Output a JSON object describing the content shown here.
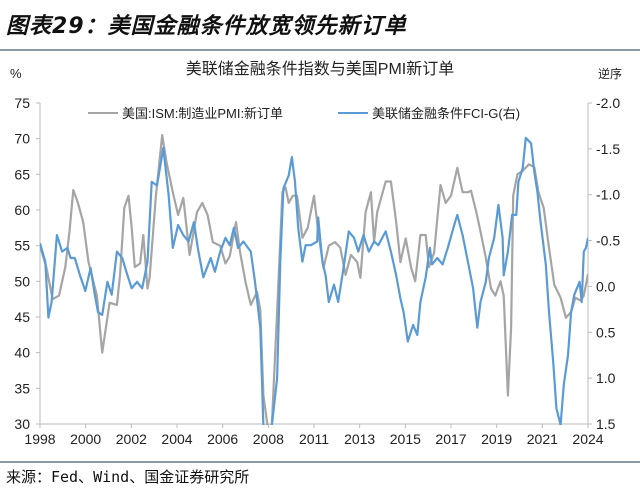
{
  "figure_title": "图表29：美国金融条件放宽领先新订单",
  "source": "来源：Fed、Wind、国金证券研究所",
  "chart_data": {
    "type": "line",
    "title": "美联储金融条件指数与美国PMI新订单",
    "ylabel_left": "%",
    "ylabel_right": "逆序",
    "x_ticks": [
      "1998",
      "2000",
      "2002",
      "2004",
      "2006",
      "2008",
      "2011",
      "2013",
      "2015",
      "2017",
      "2019",
      "2021",
      "2024"
    ],
    "xlim": [
      1998,
      2024
    ],
    "ylim_left": [
      30,
      75
    ],
    "y_ticks_left": [
      "75",
      "70",
      "65",
      "60",
      "55",
      "50",
      "45",
      "40",
      "35",
      "30"
    ],
    "ylim_right": [
      -2.0,
      1.5
    ],
    "right_axis_inverted": true,
    "y_ticks_right": [
      "-2.0",
      "-1.5",
      "-1.0",
      "-0.5",
      "0.0",
      "0.5",
      "1.0",
      "1.5"
    ],
    "grid": false,
    "legend_position": "top",
    "series": [
      {
        "name": "美国:ISM:制造业PMI:新订单",
        "axis": "left",
        "color": "#a5a5a5",
        "points": [
          [
            1998.0,
            55
          ],
          [
            1998.3,
            52
          ],
          [
            1998.6,
            47.5
          ],
          [
            1998.9,
            48
          ],
          [
            1999.2,
            52
          ],
          [
            1999.4,
            57
          ],
          [
            1999.58,
            62.8
          ],
          [
            1999.8,
            61
          ],
          [
            2000.05,
            58.3
          ],
          [
            2000.3,
            52.7
          ],
          [
            2000.7,
            48
          ],
          [
            2000.95,
            40
          ],
          [
            2001.3,
            47
          ],
          [
            2001.65,
            46.7
          ],
          [
            2001.8,
            51
          ],
          [
            2002.0,
            60.3
          ],
          [
            2002.2,
            62
          ],
          [
            2002.35,
            57.5
          ],
          [
            2002.5,
            52
          ],
          [
            2002.75,
            52.5
          ],
          [
            2002.9,
            56.5
          ],
          [
            2003.1,
            49
          ],
          [
            2003.2,
            50.5
          ],
          [
            2003.5,
            62
          ],
          [
            2003.8,
            70.5
          ],
          [
            2004.0,
            66.7
          ],
          [
            2004.3,
            62.5
          ],
          [
            2004.55,
            59.3
          ],
          [
            2004.8,
            61.7
          ],
          [
            2005.1,
            53.7
          ],
          [
            2005.45,
            59.7
          ],
          [
            2005.7,
            61
          ],
          [
            2005.95,
            59.3
          ],
          [
            2006.2,
            55.5
          ],
          [
            2006.55,
            55
          ],
          [
            2006.8,
            52.5
          ],
          [
            2007.0,
            53.5
          ],
          [
            2007.3,
            58.3
          ],
          [
            2007.5,
            54
          ],
          [
            2007.75,
            49.9
          ],
          [
            2008.0,
            46.7
          ],
          [
            2008.3,
            48.5
          ],
          [
            2008.45,
            46
          ],
          [
            2008.6,
            34
          ],
          [
            2008.8,
            24
          ],
          [
            2009.0,
            25
          ],
          [
            2009.25,
            45.7
          ],
          [
            2009.5,
            62.5
          ],
          [
            2009.65,
            63.2
          ],
          [
            2009.8,
            61
          ],
          [
            2010.0,
            62
          ],
          [
            2010.2,
            62
          ],
          [
            2010.45,
            56.1
          ],
          [
            2010.7,
            57.5
          ],
          [
            2011.0,
            62
          ],
          [
            2011.2,
            57
          ],
          [
            2011.45,
            51.9
          ],
          [
            2011.7,
            55
          ],
          [
            2012.0,
            55.5
          ],
          [
            2012.25,
            54.7
          ],
          [
            2012.5,
            50.9
          ],
          [
            2012.75,
            53.7
          ],
          [
            2013.05,
            52.7
          ],
          [
            2013.2,
            50.5
          ],
          [
            2013.45,
            59.7
          ],
          [
            2013.7,
            62.5
          ],
          [
            2013.85,
            55.5
          ],
          [
            2014.0,
            59.7
          ],
          [
            2014.4,
            64
          ],
          [
            2014.65,
            64
          ],
          [
            2014.9,
            58.3
          ],
          [
            2015.1,
            52.7
          ],
          [
            2015.35,
            56
          ],
          [
            2015.6,
            52
          ],
          [
            2015.8,
            50
          ],
          [
            2016.05,
            56.5
          ],
          [
            2016.3,
            56.5
          ],
          [
            2016.45,
            52
          ],
          [
            2016.7,
            54
          ],
          [
            2017.0,
            63.5
          ],
          [
            2017.25,
            61
          ],
          [
            2017.5,
            62
          ],
          [
            2017.8,
            65.9
          ],
          [
            2018.05,
            62.5
          ],
          [
            2018.3,
            62.5
          ],
          [
            2018.45,
            62.7
          ],
          [
            2018.7,
            59.7
          ],
          [
            2018.9,
            57
          ],
          [
            2019.15,
            53.3
          ],
          [
            2019.4,
            49
          ],
          [
            2019.6,
            48
          ],
          [
            2019.85,
            50
          ],
          [
            2020.0,
            48
          ],
          [
            2020.2,
            34
          ],
          [
            2020.35,
            43.5
          ],
          [
            2020.45,
            62
          ],
          [
            2020.65,
            65
          ],
          [
            2020.9,
            65.5
          ],
          [
            2021.2,
            66.4
          ],
          [
            2021.45,
            66
          ],
          [
            2021.65,
            62.5
          ],
          [
            2021.9,
            60.3
          ],
          [
            2022.15,
            54.7
          ],
          [
            2022.4,
            49.5
          ],
          [
            2022.7,
            47.7
          ],
          [
            2022.95,
            44.9
          ],
          [
            2023.2,
            45.7
          ],
          [
            2023.4,
            47.7
          ],
          [
            2023.65,
            47.3
          ],
          [
            2023.8,
            48
          ],
          [
            2024.0,
            51
          ]
        ]
      },
      {
        "name": "美联储金融条件FCI-G(右)",
        "axis": "right",
        "color": "#5b9bd5",
        "points": [
          [
            1998.0,
            -0.47
          ],
          [
            1998.25,
            -0.27
          ],
          [
            1998.4,
            0.34
          ],
          [
            1998.55,
            0.17
          ],
          [
            1998.8,
            -0.56
          ],
          [
            1999.05,
            -0.38
          ],
          [
            1999.3,
            -0.42
          ],
          [
            1999.45,
            -0.31
          ],
          [
            1999.65,
            -0.31
          ],
          [
            1999.9,
            -0.12
          ],
          [
            2000.15,
            0.05
          ],
          [
            2000.4,
            -0.2
          ],
          [
            2000.6,
            0.09
          ],
          [
            2000.75,
            0.28
          ],
          [
            2000.95,
            0.31
          ],
          [
            2001.2,
            -0.05
          ],
          [
            2001.4,
            0.09
          ],
          [
            2001.65,
            -0.38
          ],
          [
            2001.9,
            -0.31
          ],
          [
            2002.15,
            -0.12
          ],
          [
            2002.35,
            0.02
          ],
          [
            2002.6,
            -0.05
          ],
          [
            2002.85,
            0.02
          ],
          [
            2003.1,
            -0.27
          ],
          [
            2003.3,
            -1.14
          ],
          [
            2003.55,
            -1.1
          ],
          [
            2003.85,
            -1.51
          ],
          [
            2004.1,
            -1.0
          ],
          [
            2004.3,
            -0.42
          ],
          [
            2004.55,
            -0.67
          ],
          [
            2004.8,
            -0.56
          ],
          [
            2005.05,
            -0.49
          ],
          [
            2005.3,
            -0.7
          ],
          [
            2005.5,
            -0.4
          ],
          [
            2005.75,
            -0.1
          ],
          [
            2006.1,
            -0.31
          ],
          [
            2006.3,
            -0.16
          ],
          [
            2006.55,
            -0.38
          ],
          [
            2006.8,
            -0.53
          ],
          [
            2007.0,
            -0.45
          ],
          [
            2007.2,
            -0.64
          ],
          [
            2007.4,
            -0.42
          ],
          [
            2007.65,
            -0.49
          ],
          [
            2008.0,
            -0.38
          ],
          [
            2008.2,
            -0.05
          ],
          [
            2008.45,
            0.45
          ],
          [
            2008.6,
            1.6
          ],
          [
            2008.75,
            3.0
          ],
          [
            2009.0,
            2.5
          ],
          [
            2009.25,
            1.0
          ],
          [
            2009.4,
            -0.27
          ],
          [
            2009.55,
            -1.07
          ],
          [
            2009.8,
            -1.21
          ],
          [
            2009.95,
            -1.41
          ],
          [
            2010.1,
            -1.14
          ],
          [
            2010.25,
            -0.64
          ],
          [
            2010.45,
            -0.27
          ],
          [
            2010.6,
            -0.45
          ],
          [
            2010.85,
            -0.45
          ],
          [
            2011.15,
            -0.49
          ],
          [
            2011.2,
            -0.75
          ],
          [
            2011.4,
            -0.27
          ],
          [
            2011.55,
            -0.12
          ],
          [
            2011.7,
            0.17
          ],
          [
            2011.95,
            -0.02
          ],
          [
            2012.15,
            0.17
          ],
          [
            2012.4,
            -0.2
          ],
          [
            2012.65,
            -0.6
          ],
          [
            2012.9,
            -0.53
          ],
          [
            2013.1,
            -0.38
          ],
          [
            2013.35,
            -0.56
          ],
          [
            2013.6,
            -0.38
          ],
          [
            2013.85,
            -0.49
          ],
          [
            2014.05,
            -0.45
          ],
          [
            2014.4,
            -0.6
          ],
          [
            2014.65,
            -0.38
          ],
          [
            2014.9,
            -0.12
          ],
          [
            2015.1,
            0.13
          ],
          [
            2015.25,
            0.28
          ],
          [
            2015.45,
            0.6
          ],
          [
            2015.7,
            0.42
          ],
          [
            2015.9,
            0.53
          ],
          [
            2016.05,
            0.17
          ],
          [
            2016.3,
            -0.1
          ],
          [
            2016.5,
            -0.42
          ],
          [
            2016.6,
            -0.24
          ],
          [
            2016.85,
            -0.31
          ],
          [
            2017.1,
            -0.24
          ],
          [
            2017.35,
            -0.42
          ],
          [
            2017.65,
            -0.67
          ],
          [
            2017.8,
            -0.78
          ],
          [
            2018.05,
            -0.56
          ],
          [
            2018.3,
            -0.27
          ],
          [
            2018.55,
            0.02
          ],
          [
            2018.75,
            0.45
          ],
          [
            2018.9,
            0.17
          ],
          [
            2019.15,
            -0.05
          ],
          [
            2019.3,
            -0.31
          ],
          [
            2019.55,
            -0.53
          ],
          [
            2019.75,
            -0.89
          ],
          [
            2019.95,
            -0.53
          ],
          [
            2020.0,
            -0.12
          ],
          [
            2020.2,
            -0.38
          ],
          [
            2020.4,
            -0.78
          ],
          [
            2020.6,
            -0.78
          ],
          [
            2020.7,
            -1.14
          ],
          [
            2020.9,
            -1.29
          ],
          [
            2021.05,
            -1.62
          ],
          [
            2021.3,
            -1.56
          ],
          [
            2021.45,
            -1.25
          ],
          [
            2021.6,
            -1.03
          ],
          [
            2021.75,
            -0.7
          ],
          [
            2022.0,
            -0.24
          ],
          [
            2022.15,
            0.28
          ],
          [
            2022.35,
            0.82
          ],
          [
            2022.5,
            1.33
          ],
          [
            2022.7,
            1.51
          ],
          [
            2022.85,
            1.07
          ],
          [
            2023.05,
            0.75
          ],
          [
            2023.2,
            0.28
          ],
          [
            2023.35,
            0.09
          ],
          [
            2023.6,
            -0.05
          ],
          [
            2023.7,
            0.17
          ],
          [
            2023.8,
            -0.38
          ],
          [
            2023.9,
            -0.42
          ],
          [
            2024.0,
            -0.53
          ]
        ]
      }
    ]
  }
}
